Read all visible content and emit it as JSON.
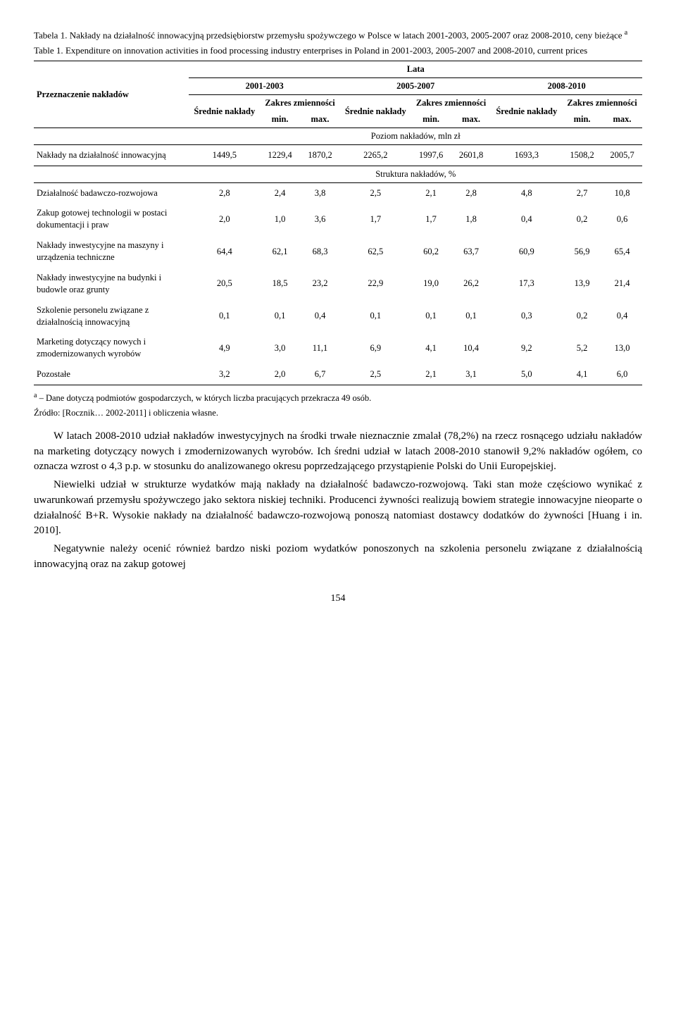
{
  "caption": {
    "pl_label": "Tabela 1.",
    "pl_text": "Nakłady na działalność innowacyjną przedsiębiorstw przemysłu spożywczego w Polsce w latach 2001-2003, 2005-2007 oraz 2008-2010, ceny bieżące ",
    "pl_sup": "a",
    "en_label": "Table 1.",
    "en_text": "Expenditure on innovation activities in food processing industry enterprises in Poland in 2001-2003, 2005-2007 and 2008-2010, current prices"
  },
  "headers": {
    "col0": "Przeznaczenie nakładów",
    "lata": "Lata",
    "periods": [
      "2001-2003",
      "2005-2007",
      "2008-2010"
    ],
    "srednie": "Średnie nakłady",
    "zakres": "Zakres zmienności",
    "min": "min.",
    "max": "max."
  },
  "section1": "Poziom nakładów, mln zł",
  "section2": "Struktura nakładów, %",
  "rows_level": [
    {
      "label": "Nakłady na działalność innowacyjną",
      "v": [
        "1449,5",
        "1229,4",
        "1870,2",
        "2265,2",
        "1997,6",
        "2601,8",
        "1693,3",
        "1508,2",
        "2005,7"
      ]
    }
  ],
  "rows_struct": [
    {
      "label": "Działalność badawczo-rozwojowa",
      "v": [
        "2,8",
        "2,4",
        "3,8",
        "2,5",
        "2,1",
        "2,8",
        "4,8",
        "2,7",
        "10,8"
      ]
    },
    {
      "label": "Zakup gotowej technologii w postaci dokumentacji i praw",
      "v": [
        "2,0",
        "1,0",
        "3,6",
        "1,7",
        "1,7",
        "1,8",
        "0,4",
        "0,2",
        "0,6"
      ]
    },
    {
      "label": "Nakłady inwestycyjne na maszyny i urządzenia techniczne",
      "v": [
        "64,4",
        "62,1",
        "68,3",
        "62,5",
        "60,2",
        "63,7",
        "60,9",
        "56,9",
        "65,4"
      ]
    },
    {
      "label": "Nakłady inwestycyjne na budynki i budowle oraz grunty",
      "v": [
        "20,5",
        "18,5",
        "23,2",
        "22,9",
        "19,0",
        "26,2",
        "17,3",
        "13,9",
        "21,4"
      ]
    },
    {
      "label": "Szkolenie personelu związane z działalnością innowacyjną",
      "v": [
        "0,1",
        "0,1",
        "0,4",
        "0,1",
        "0,1",
        "0,1",
        "0,3",
        "0,2",
        "0,4"
      ]
    },
    {
      "label": "Marketing dotyczący nowych i zmodernizowanych wyrobów",
      "v": [
        "4,9",
        "3,0",
        "11,1",
        "6,9",
        "4,1",
        "10,4",
        "9,2",
        "5,2",
        "13,0"
      ]
    },
    {
      "label": "Pozostałe",
      "v": [
        "3,2",
        "2,0",
        "6,7",
        "2,5",
        "2,1",
        "3,1",
        "5,0",
        "4,1",
        "6,0"
      ]
    }
  ],
  "footnote_sup": "a",
  "footnote": " – Dane dotyczą podmiotów gospodarczych, w których liczba pracujących przekracza 49 osób.",
  "source": "Źródło: [Rocznik… 2002-2011] i obliczenia własne.",
  "paras": [
    "W latach 2008-2010 udział nakładów inwestycyjnych na środki trwałe nieznacznie zmalał (78,2%) na rzecz rosnącego udziału nakładów na marketing dotyczący nowych i zmodernizowanych wyrobów. Ich średni udział w latach 2008-2010 stanowił 9,2% nakładów ogółem, co oznacza wzrost o 4,3 p.p. w stosunku do analizowanego okresu poprzedzającego przystąpienie Polski do Unii Europejskiej.",
    "Niewielki udział w strukturze wydatków mają nakłady na działalność badawczo-rozwojową. Taki stan może częściowo wynikać z uwarunkowań przemysłu spożywczego jako sektora niskiej techniki. Producenci żywności realizują bowiem strategie innowacyjne nieoparte o działalność B+R. Wysokie nakłady na działalność badawczo-rozwojową ponoszą natomiast dostawcy dodatków do żywności [Huang i in. 2010].",
    "Negatywnie należy ocenić również bardzo niski poziom wydatków ponoszonych na szkolenia personelu związane z działalnością innowacyjną oraz na zakup gotowej"
  ],
  "page": "154"
}
